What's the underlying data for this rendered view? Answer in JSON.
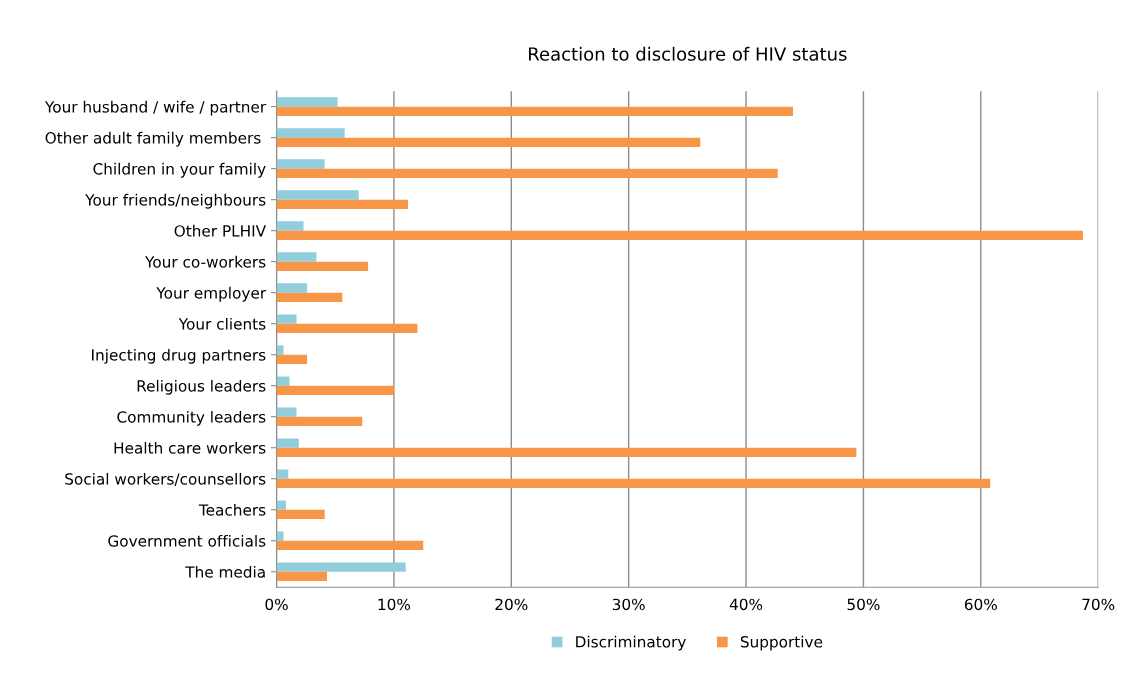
{
  "chart_data": {
    "type": "bar",
    "orientation": "horizontal",
    "title": "Reaction to disclosure of HIV status",
    "categories": [
      "Your husband / wife / partner",
      "Other adult family members ",
      "Children in your family",
      "Your friends/neighbours",
      "Other PLHIV",
      "Your co-workers",
      "Your employer",
      "Your clients",
      "Injecting drug partners",
      "Religious leaders",
      "Community leaders",
      "Health care workers",
      "Social workers/counsellors",
      "Teachers",
      "Government officials",
      "The media"
    ],
    "series": [
      {
        "name": "Discriminatory",
        "color": "#92cddc",
        "values": [
          5.2,
          5.8,
          4.1,
          7.0,
          2.3,
          3.4,
          2.6,
          1.7,
          0.6,
          1.1,
          1.7,
          1.9,
          1.0,
          0.8,
          0.6,
          11.0
        ]
      },
      {
        "name": "Supportive",
        "color": "#f79646",
        "values": [
          44.0,
          36.1,
          42.7,
          11.2,
          68.7,
          7.8,
          5.6,
          12.0,
          2.6,
          10.0,
          7.3,
          49.4,
          60.8,
          4.1,
          12.5,
          4.3
        ]
      }
    ],
    "xlim": [
      0,
      70
    ],
    "xticks": [
      {
        "value": 0,
        "label": "0%"
      },
      {
        "value": 10,
        "label": "10%"
      },
      {
        "value": 20,
        "label": "20%"
      },
      {
        "value": 30,
        "label": "30%"
      },
      {
        "value": 40,
        "label": "40%"
      },
      {
        "value": 50,
        "label": "50%"
      },
      {
        "value": 60,
        "label": "60%"
      },
      {
        "value": 70,
        "label": "70%"
      }
    ],
    "grid": "x",
    "legend": "bottom"
  }
}
